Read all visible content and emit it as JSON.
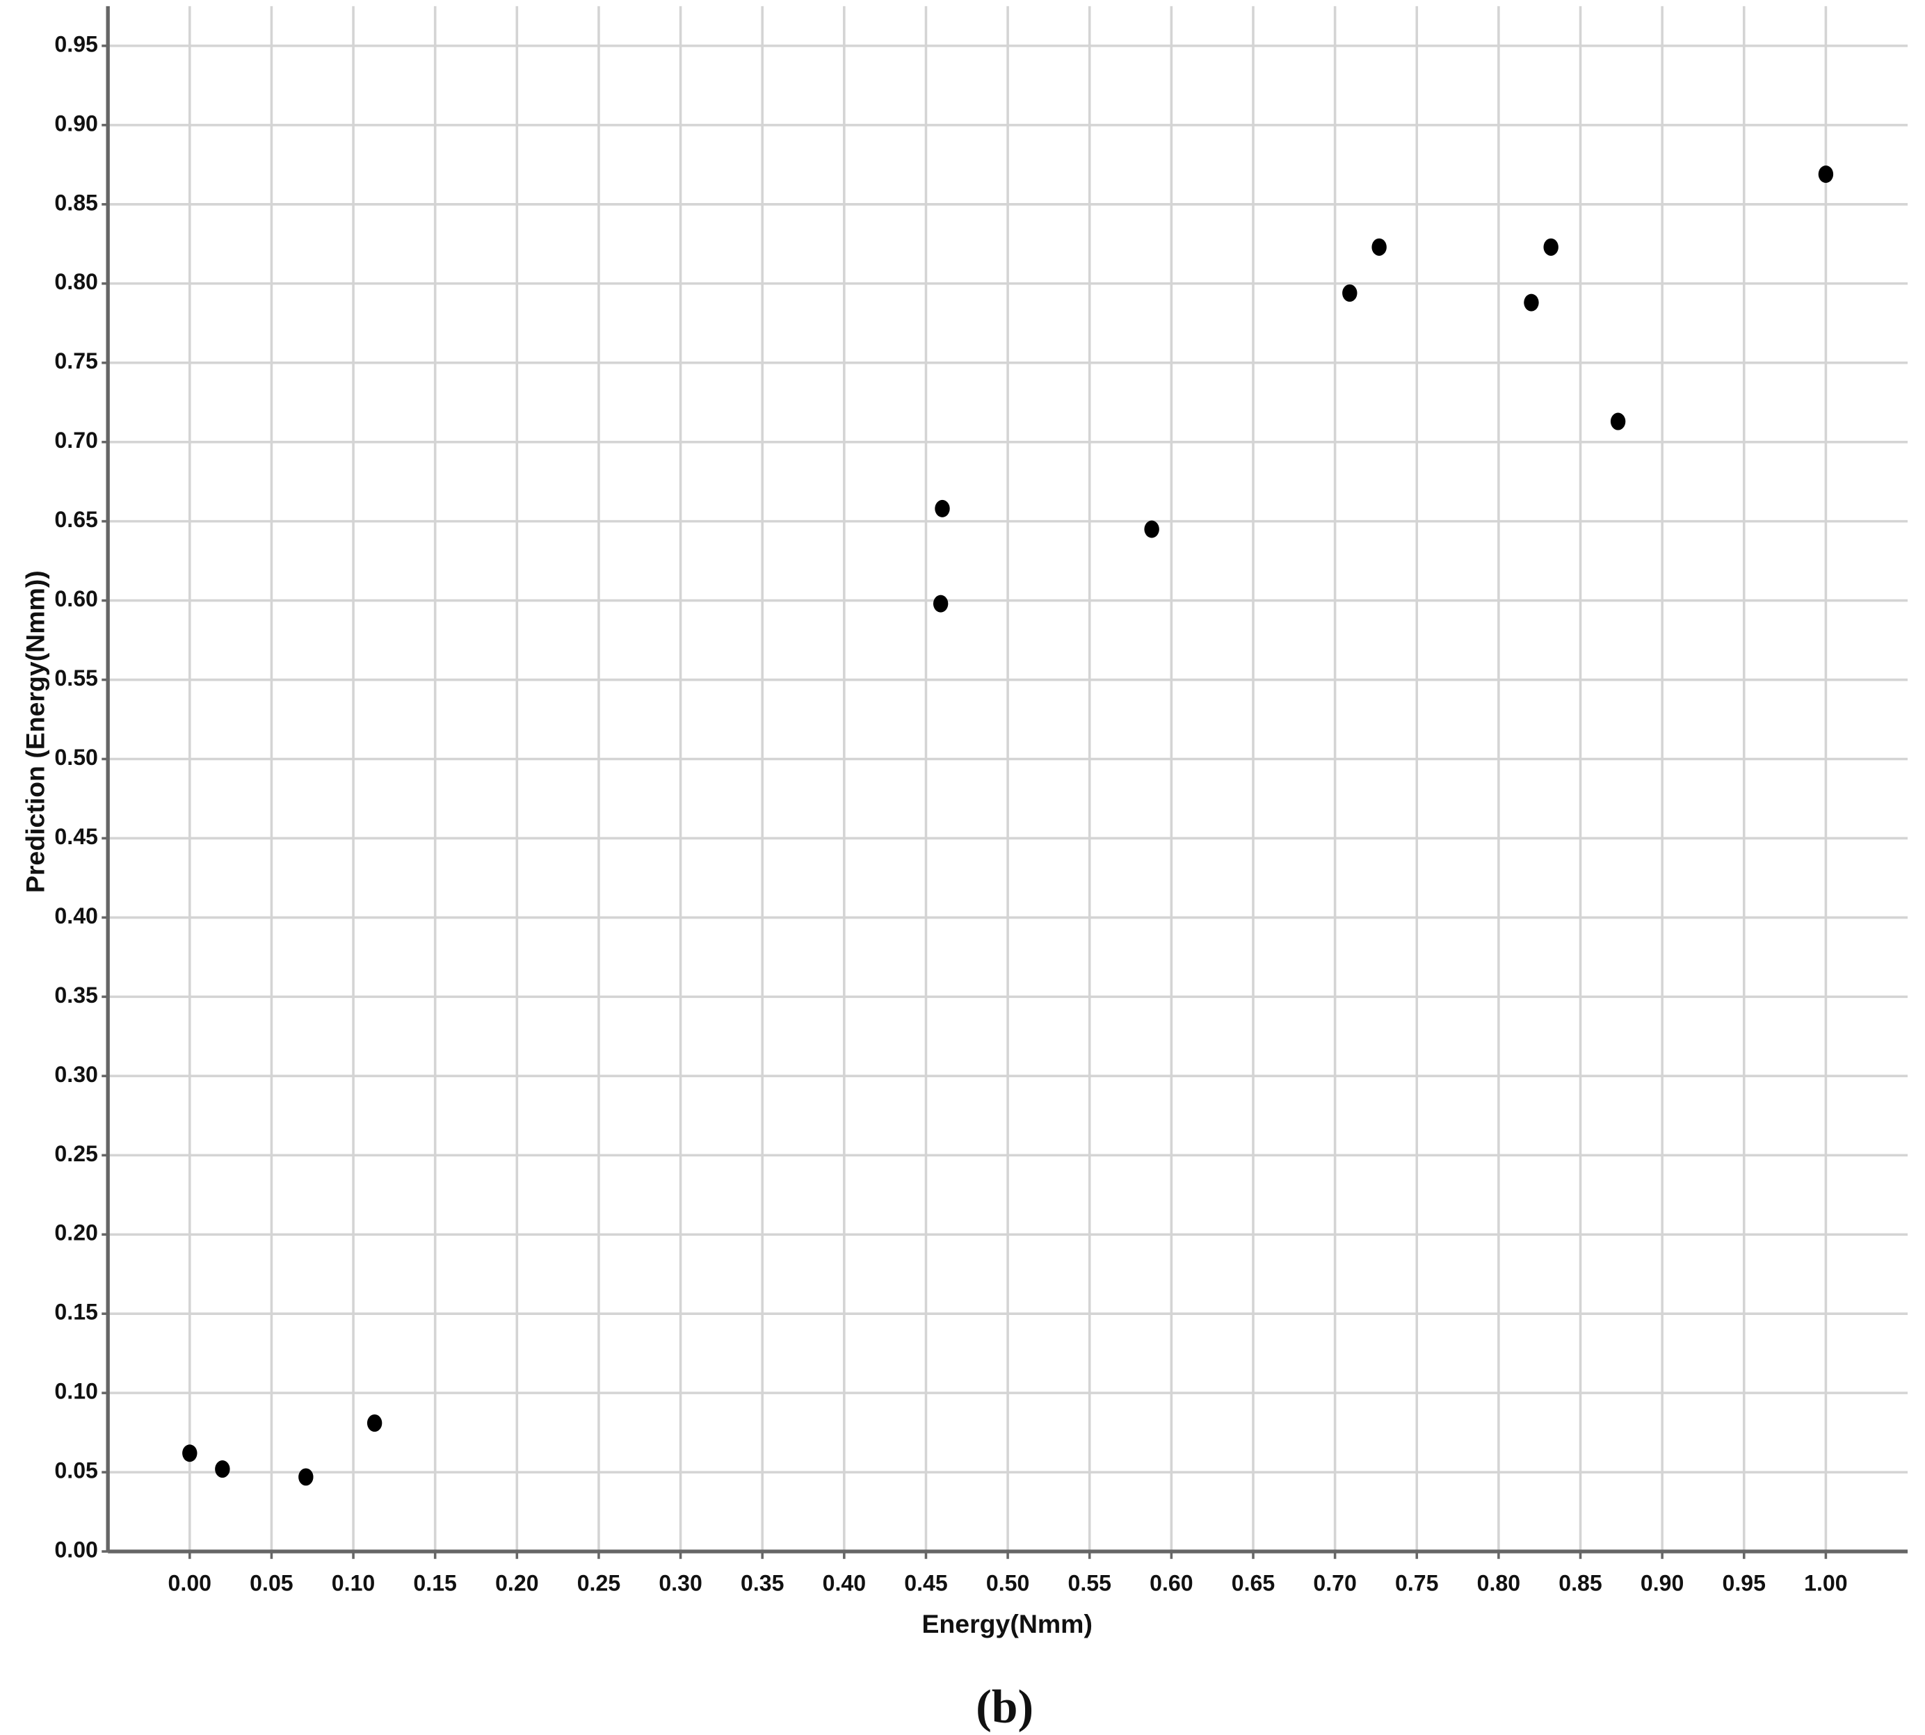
{
  "chart_data": {
    "type": "scatter",
    "xlabel": "Energy(Nmm)",
    "ylabel": "Prediction (Energy(Nmm))",
    "caption": "(b)",
    "x": [
      0.0,
      0.02,
      0.071,
      0.113,
      0.46,
      0.459,
      0.588,
      0.709,
      0.727,
      0.82,
      0.832,
      0.873,
      1.0
    ],
    "values": [
      0.062,
      0.052,
      0.047,
      0.081,
      0.658,
      0.598,
      0.645,
      0.794,
      0.823,
      0.788,
      0.823,
      0.713,
      0.869
    ],
    "color": "#000000",
    "xlim": [
      -0.05,
      1.05
    ],
    "ylim": [
      0,
      0.975
    ],
    "grid": true,
    "xticks": [
      {
        "value": 0,
        "label": "0.00"
      },
      {
        "value": 0.05,
        "label": "0.05"
      },
      {
        "value": 0.1,
        "label": "0.10"
      },
      {
        "value": 0.15,
        "label": "0.15"
      },
      {
        "value": 0.2,
        "label": "0.20"
      },
      {
        "value": 0.25,
        "label": "0.25"
      },
      {
        "value": 0.3,
        "label": "0.30"
      },
      {
        "value": 0.35,
        "label": "0.35"
      },
      {
        "value": 0.4,
        "label": "0.40"
      },
      {
        "value": 0.45,
        "label": "0.45"
      },
      {
        "value": 0.5,
        "label": "0.50"
      },
      {
        "value": 0.55,
        "label": "0.55"
      },
      {
        "value": 0.6,
        "label": "0.60"
      },
      {
        "value": 0.65,
        "label": "0.65"
      },
      {
        "value": 0.7,
        "label": "0.70"
      },
      {
        "value": 0.75,
        "label": "0.75"
      },
      {
        "value": 0.8,
        "label": "0.80"
      },
      {
        "value": 0.85,
        "label": "0.85"
      },
      {
        "value": 0.9,
        "label": "0.90"
      },
      {
        "value": 0.95,
        "label": "0.95"
      },
      {
        "value": 1,
        "label": "1.00"
      }
    ],
    "yticks": [
      {
        "value": 0,
        "label": "0.00"
      },
      {
        "value": 0.05,
        "label": "0.05"
      },
      {
        "value": 0.1,
        "label": "0.10"
      },
      {
        "value": 0.15,
        "label": "0.15"
      },
      {
        "value": 0.2,
        "label": "0.20"
      },
      {
        "value": 0.25,
        "label": "0.25"
      },
      {
        "value": 0.3,
        "label": "0.30"
      },
      {
        "value": 0.35,
        "label": "0.35"
      },
      {
        "value": 0.4,
        "label": "0.40"
      },
      {
        "value": 0.45,
        "label": "0.45"
      },
      {
        "value": 0.5,
        "label": "0.50"
      },
      {
        "value": 0.55,
        "label": "0.55"
      },
      {
        "value": 0.6,
        "label": "0.60"
      },
      {
        "value": 0.65,
        "label": "0.65"
      },
      {
        "value": 0.7,
        "label": "0.70"
      },
      {
        "value": 0.75,
        "label": "0.75"
      },
      {
        "value": 0.8,
        "label": "0.80"
      },
      {
        "value": 0.85,
        "label": "0.85"
      },
      {
        "value": 0.9,
        "label": "0.90"
      },
      {
        "value": 0.95,
        "label": "0.95"
      }
    ]
  }
}
